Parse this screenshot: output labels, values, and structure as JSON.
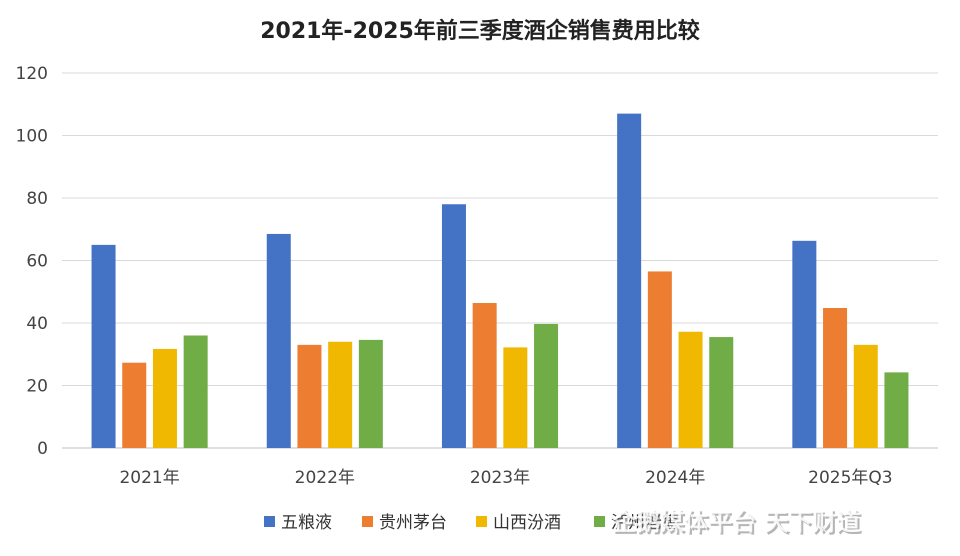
{
  "chart_data": {
    "type": "bar",
    "title": "2021年-2025年前三季度酒企销售费用比较",
    "categories": [
      "2021年",
      "2022年",
      "2023年",
      "2024年",
      "2025年Q3"
    ],
    "series": [
      {
        "name": "五粮液",
        "color": "#4472C4",
        "values": [
          65.0,
          68.5,
          78.0,
          107.0,
          66.3
        ]
      },
      {
        "name": "贵州茅台",
        "color": "#ED7D31",
        "values": [
          27.3,
          33.0,
          46.4,
          56.5,
          44.8
        ]
      },
      {
        "name": "山西汾酒",
        "color": "#F0B800",
        "values": [
          31.7,
          34.0,
          32.2,
          37.2,
          33.0
        ]
      },
      {
        "name": "泸州老窖",
        "color": "#70AD47",
        "values": [
          36.0,
          34.6,
          39.7,
          35.5,
          24.2
        ]
      }
    ],
    "ylim": [
      0,
      120
    ],
    "yticks": [
      "0",
      "20",
      "40",
      "60",
      "80",
      "100",
      "120"
    ],
    "xlabel": "",
    "ylabel": "",
    "grid": true,
    "legend_position": "bottom"
  },
  "watermark": "企鹅媒体平台 天下财道"
}
